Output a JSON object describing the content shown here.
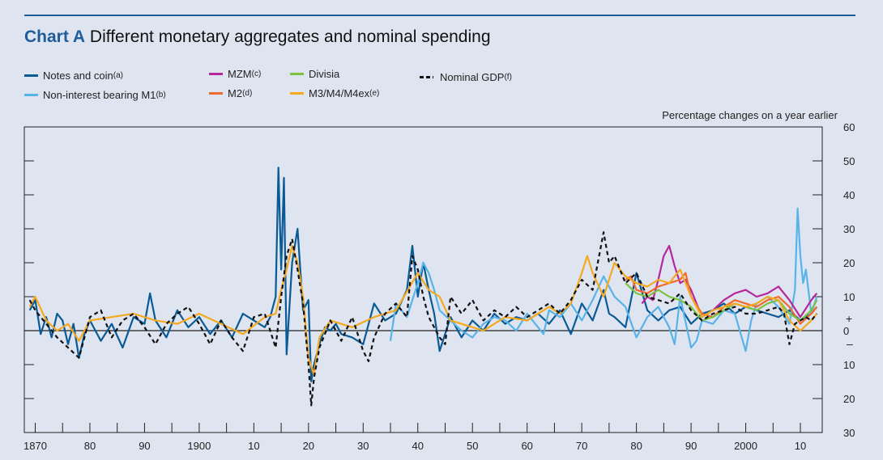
{
  "header": {
    "chart_label": "Chart A",
    "title": "Different monetary aggregates and nominal spending"
  },
  "legend": [
    {
      "label": "Notes and coin",
      "sup": "(a)",
      "color": "#0a5a96",
      "dashed": false
    },
    {
      "label": "Non-interest bearing M1",
      "sup": "(b)",
      "color": "#58b4e8",
      "dashed": false
    },
    {
      "label": "MZM",
      "sup": "(c)",
      "color": "#b5279a",
      "dashed": false
    },
    {
      "label": "M2",
      "sup": "(d)",
      "color": "#ef6a2c",
      "dashed": false
    },
    {
      "label": "Divisia",
      "sup": "",
      "color": "#7cc242",
      "dashed": false
    },
    {
      "label": "M3/M4/M4ex",
      "sup": "(e)",
      "color": "#f5a91f",
      "dashed": false
    },
    {
      "label": "Nominal GDP",
      "sup": "(f)",
      "color": "#111111",
      "dashed": true
    }
  ],
  "chart_data": {
    "type": "line",
    "unit_label": "Percentage changes on a year earlier",
    "xlim": [
      1868,
      2014
    ],
    "ylim": [
      -30,
      60
    ],
    "x_tick_labels": [
      {
        "x": 1870,
        "label": "1870"
      },
      {
        "x": 1880,
        "label": "80"
      },
      {
        "x": 1890,
        "label": "90"
      },
      {
        "x": 1900,
        "label": "1900"
      },
      {
        "x": 1910,
        "label": "10"
      },
      {
        "x": 1920,
        "label": "20"
      },
      {
        "x": 1930,
        "label": "30"
      },
      {
        "x": 1940,
        "label": "40"
      },
      {
        "x": 1950,
        "label": "50"
      },
      {
        "x": 1960,
        "label": "60"
      },
      {
        "x": 1970,
        "label": "70"
      },
      {
        "x": 1980,
        "label": "80"
      },
      {
        "x": 1990,
        "label": "90"
      },
      {
        "x": 2000,
        "label": "2000"
      },
      {
        "x": 2010,
        "label": "10"
      }
    ],
    "x_ticks": [
      1870,
      1875,
      1880,
      1885,
      1890,
      1895,
      1900,
      1905,
      1910,
      1915,
      1920,
      1925,
      1930,
      1935,
      1940,
      1945,
      1950,
      1955,
      1960,
      1965,
      1970,
      1975,
      1980,
      1985,
      1990,
      1995,
      2000,
      2005,
      2010
    ],
    "y_ticks": [
      {
        "y": 60,
        "label": "60"
      },
      {
        "y": 50,
        "label": "50"
      },
      {
        "y": 40,
        "label": "40"
      },
      {
        "y": 30,
        "label": "30"
      },
      {
        "y": 20,
        "label": "20"
      },
      {
        "y": 10,
        "label": "10"
      },
      {
        "y": 0,
        "label": "0"
      },
      {
        "y": -10,
        "label": "10"
      },
      {
        "y": -20,
        "label": "20"
      },
      {
        "y": -30,
        "label": "30"
      }
    ],
    "zero_markers": {
      "plus": "+",
      "minus": "–"
    },
    "series": [
      {
        "name": "Notes and coin",
        "color": "#0a5a96",
        "dashed": false,
        "x": [
          1869,
          1870,
          1871,
          1872,
          1873,
          1874,
          1875,
          1876,
          1877,
          1878,
          1879,
          1880,
          1882,
          1884,
          1886,
          1888,
          1890,
          1891,
          1892,
          1894,
          1896,
          1898,
          1900,
          1902,
          1904,
          1906,
          1908,
          1910,
          1912,
          1913,
          1914,
          1914.5,
          1915,
          1915.5,
          1916,
          1917,
          1918,
          1919,
          1920,
          1920.5,
          1921,
          1922,
          1923,
          1924,
          1925,
          1926,
          1928,
          1930,
          1932,
          1934,
          1936,
          1938,
          1939,
          1940,
          1941,
          1942,
          1943,
          1944,
          1946,
          1948,
          1950,
          1952,
          1954,
          1956,
          1958,
          1960,
          1962,
          1964,
          1966,
          1968,
          1970,
          1972,
          1974,
          1975,
          1976,
          1978,
          1980,
          1982,
          1984,
          1986,
          1988,
          1990,
          1992,
          1994,
          1996,
          1998,
          2000,
          2002,
          2004,
          2006,
          2008,
          2010,
          2012,
          2013
        ],
        "y": [
          6,
          9,
          -1,
          4,
          -2,
          5,
          3,
          -4,
          2,
          -8,
          -1,
          3,
          -3,
          2,
          -5,
          4,
          2,
          11,
          3,
          -2,
          6,
          1,
          4,
          -1,
          3,
          -2,
          5,
          3,
          1,
          4,
          10,
          48,
          18,
          45,
          -7,
          20,
          30,
          6,
          9,
          -15,
          -10,
          -4,
          1,
          0,
          2,
          -1,
          -2,
          -4,
          8,
          3,
          5,
          12,
          25,
          10,
          20,
          12,
          5,
          -6,
          4,
          -2,
          3,
          0,
          5,
          2,
          4,
          3,
          5,
          2,
          6,
          -1,
          8,
          3,
          12,
          5,
          4,
          1,
          17,
          6,
          3,
          6,
          7,
          2,
          5,
          6,
          8,
          5,
          7,
          6,
          5,
          4,
          6,
          3,
          5,
          7
        ]
      },
      {
        "name": "Non-interest bearing M1",
        "color": "#58b4e8",
        "dashed": false,
        "x": [
          1935,
          1936,
          1938,
          1940,
          1941,
          1942,
          1943,
          1944,
          1946,
          1948,
          1950,
          1952,
          1954,
          1956,
          1958,
          1960,
          1962,
          1963,
          1964,
          1966,
          1968,
          1970,
          1972,
          1974,
          1976,
          1978,
          1980,
          1982,
          1984,
          1986,
          1987,
          1988,
          1990,
          1991,
          1992,
          1994,
          1996,
          1998,
          2000,
          2001,
          2002,
          2004,
          2006,
          2008,
          2009,
          2009.5,
          2010,
          2010.5,
          2011,
          2012,
          2013
        ],
        "y": [
          -3,
          8,
          4,
          14,
          20,
          17,
          12,
          6,
          3,
          0,
          -2,
          2,
          4,
          3,
          0,
          5,
          1,
          -1,
          6,
          4,
          8,
          3,
          9,
          16,
          10,
          7,
          -2,
          4,
          7,
          1,
          -4,
          10,
          -5,
          -3,
          3,
          2,
          6,
          5,
          -6,
          3,
          8,
          10,
          7,
          2,
          12,
          36,
          22,
          14,
          18,
          5,
          10
        ]
      },
      {
        "name": "MZM",
        "color": "#b5279a",
        "dashed": false,
        "x": [
          1981,
          1982,
          1983,
          1984,
          1985,
          1986,
          1987,
          1988,
          1989,
          1990,
          1992,
          1994,
          1996,
          1998,
          2000,
          2002,
          2004,
          2006,
          2008,
          2010,
          2012,
          2013
        ],
        "y": [
          8,
          10,
          9,
          15,
          22,
          25,
          19,
          14,
          15,
          12,
          4,
          6,
          9,
          11,
          12,
          10,
          11,
          13,
          9,
          4,
          9,
          11
        ]
      },
      {
        "name": "M2",
        "color": "#ef6a2c",
        "dashed": false,
        "x": [
          1978,
          1979,
          1980,
          1982,
          1984,
          1986,
          1988,
          1989,
          1990,
          1992,
          1994,
          1996,
          1998,
          2000,
          2002,
          2004,
          2006,
          2008,
          2010,
          2012,
          2013
        ],
        "y": [
          15,
          16,
          12,
          11,
          13,
          14,
          15,
          17,
          10,
          5,
          4,
          7,
          9,
          8,
          7,
          9,
          10,
          7,
          2,
          5,
          7
        ]
      },
      {
        "name": "Divisia",
        "color": "#7cc242",
        "dashed": false,
        "x": [
          1978,
          1980,
          1982,
          1984,
          1986,
          1988,
          1990,
          1992,
          1994,
          1996,
          1998,
          2000,
          2002,
          2004,
          2006,
          2008,
          2010,
          2012,
          2013
        ],
        "y": [
          14,
          11,
          10,
          12,
          10,
          9,
          7,
          3,
          4,
          6,
          8,
          7,
          6,
          8,
          9,
          5,
          3,
          6,
          9
        ]
      },
      {
        "name": "M3/M4/M4ex",
        "color": "#f5a91f",
        "dashed": false,
        "x": [
          1869,
          1870,
          1872,
          1874,
          1876,
          1878,
          1880,
          1884,
          1888,
          1892,
          1896,
          1900,
          1904,
          1908,
          1912,
          1914,
          1915,
          1916,
          1917,
          1918,
          1919,
          1920,
          1921,
          1922,
          1924,
          1928,
          1932,
          1936,
          1940,
          1942,
          1944,
          1946,
          1948,
          1952,
          1956,
          1960,
          1964,
          1966,
          1968,
          1970,
          1971,
          1972,
          1974,
          1976,
          1978,
          1980,
          1982,
          1984,
          1986,
          1988,
          1990,
          1992,
          1994,
          1996,
          1998,
          2000,
          2002,
          2004,
          2006,
          2008,
          2010,
          2012,
          2013
        ],
        "y": [
          7,
          10,
          3,
          0,
          2,
          -3,
          3,
          4,
          5,
          3,
          2,
          5,
          2,
          -1,
          4,
          5,
          12,
          18,
          25,
          20,
          10,
          -8,
          -13,
          -2,
          3,
          1,
          4,
          6,
          17,
          12,
          10,
          3,
          2,
          0,
          4,
          3,
          7,
          5,
          8,
          17,
          22,
          17,
          10,
          20,
          16,
          14,
          13,
          15,
          14,
          18,
          10,
          4,
          6,
          7,
          8,
          7,
          8,
          10,
          9,
          3,
          0,
          3,
          5
        ]
      },
      {
        "name": "Nominal GDP",
        "color": "#111111",
        "dashed": true,
        "x": [
          1869,
          1870,
          1872,
          1874,
          1876,
          1878,
          1880,
          1882,
          1884,
          1886,
          1888,
          1890,
          1892,
          1894,
          1896,
          1898,
          1900,
          1902,
          1904,
          1906,
          1908,
          1910,
          1912,
          1914,
          1915,
          1916,
          1917,
          1918,
          1919,
          1920,
          1920.5,
          1921,
          1922,
          1924,
          1926,
          1928,
          1930,
          1931,
          1932,
          1934,
          1936,
          1938,
          1939,
          1940,
          1941,
          1942,
          1944,
          1945,
          1946,
          1948,
          1950,
          1952,
          1954,
          1956,
          1958,
          1960,
          1962,
          1964,
          1966,
          1968,
          1970,
          1972,
          1974,
          1975,
          1976,
          1978,
          1980,
          1982,
          1984,
          1986,
          1988,
          1990,
          1992,
          1994,
          1996,
          1998,
          2000,
          2002,
          2004,
          2006,
          2007,
          2008,
          2009,
          2010,
          2011,
          2012,
          2013
        ],
        "y": [
          9,
          6,
          2,
          -2,
          -5,
          -8,
          4,
          6,
          -2,
          3,
          5,
          1,
          -4,
          2,
          5,
          7,
          2,
          -4,
          3,
          -2,
          -6,
          4,
          5,
          -5,
          10,
          22,
          27,
          18,
          8,
          -10,
          -22,
          -14,
          -5,
          3,
          -3,
          4,
          -6,
          -9,
          -2,
          5,
          8,
          4,
          22,
          18,
          10,
          4,
          -2,
          -4,
          10,
          5,
          9,
          3,
          6,
          4,
          7,
          4,
          6,
          8,
          5,
          9,
          15,
          12,
          29,
          20,
          22,
          14,
          17,
          10,
          9,
          8,
          11,
          6,
          3,
          5,
          6,
          7,
          5,
          5,
          6,
          7,
          5,
          -4,
          2,
          3,
          4,
          3,
          5
        ]
      }
    ]
  }
}
